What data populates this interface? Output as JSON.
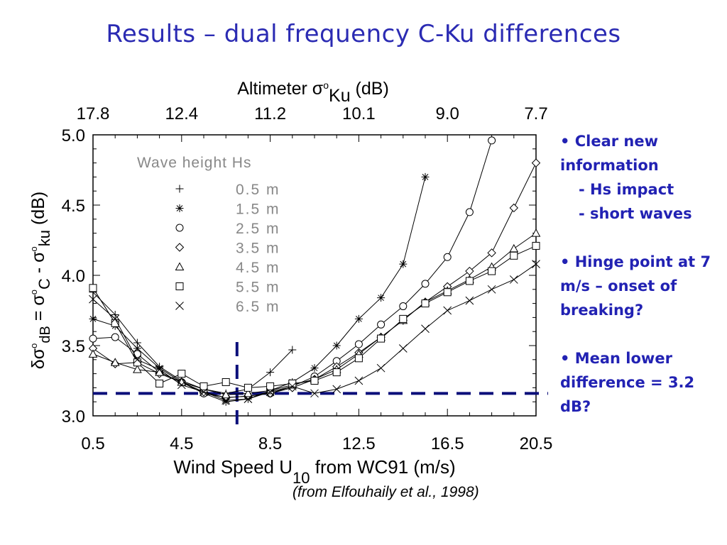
{
  "slide": {
    "title": "Results – dual frequency C-Ku differences",
    "citation": "(from Elfouhaily et al., 1998)",
    "bullets": [
      {
        "text": "• Clear new information",
        "sub": [
          "- Hs impact",
          "- short waves"
        ]
      },
      {
        "text": "• Hinge point at 7 m/s – onset of breaking?",
        "sub": []
      },
      {
        "text": "• Mean lower difference = 3.2 dB?",
        "sub": []
      }
    ],
    "accent_color": "#2b2bb3"
  },
  "chart_data": {
    "type": "line",
    "xlabel_main": "Wind Speed U",
    "xlabel_sub": "10",
    "xlabel_rest": " from WC91 (m/s)",
    "top_label_main": "Altimeter σ",
    "top_label_sup": "o",
    "top_label_sub": "Ku",
    "top_label_rest": " (dB)",
    "ylabel_parts": [
      "δσ",
      "o",
      "dB",
      " = σ",
      "o",
      "C",
      " - σ",
      "o",
      "ku",
      " (dB)"
    ],
    "xlim": [
      0.5,
      20.5
    ],
    "ylim": [
      3.0,
      5.0
    ],
    "x_ticks": [
      "0.5",
      "4.5",
      "8.5",
      "12.5",
      "16.5",
      "20.5"
    ],
    "y_ticks": [
      "3.0",
      "3.5",
      "4.0",
      "4.5",
      "5.0"
    ],
    "top_ticks": [
      "17.8",
      "12.4",
      "11.2",
      "10.1",
      "9.0",
      "7.7"
    ],
    "top_tick_x": [
      0.5,
      4.5,
      8.5,
      12.5,
      16.5,
      20.5
    ],
    "legend_title": "Wave height Hs",
    "legend_position": "top-left",
    "series": [
      {
        "name": "0.5 m",
        "marker": "plus",
        "x": [
          0.5,
          1.5,
          2.5,
          3.5,
          4.5,
          5.5,
          6.5,
          7.5,
          8.5,
          9.5
        ],
        "y": [
          3.88,
          3.72,
          3.52,
          3.35,
          3.25,
          3.19,
          3.16,
          3.19,
          3.31,
          3.47
        ]
      },
      {
        "name": "1.5 m",
        "marker": "star",
        "x": [
          0.5,
          1.5,
          2.5,
          3.5,
          4.5,
          5.5,
          6.5,
          7.5,
          8.5,
          9.5,
          10.5,
          11.5,
          12.5,
          13.5,
          14.5,
          15.5
        ],
        "y": [
          3.69,
          3.64,
          3.48,
          3.34,
          3.24,
          3.16,
          3.1,
          3.12,
          3.18,
          3.24,
          3.34,
          3.5,
          3.69,
          3.84,
          4.08,
          4.7
        ]
      },
      {
        "name": "2.5 m",
        "marker": "circle",
        "x": [
          0.5,
          1.5,
          2.5,
          3.5,
          4.5,
          5.5,
          6.5,
          7.5,
          8.5,
          9.5,
          10.5,
          11.5,
          12.5,
          13.5,
          14.5,
          15.5,
          16.5,
          17.5,
          18.5
        ],
        "y": [
          3.55,
          3.56,
          3.44,
          3.31,
          3.24,
          3.16,
          3.13,
          3.14,
          3.16,
          3.21,
          3.28,
          3.39,
          3.51,
          3.65,
          3.78,
          3.94,
          4.13,
          4.45,
          4.96
        ]
      },
      {
        "name": "3.5 m",
        "marker": "diamond",
        "x": [
          0.5,
          1.5,
          2.5,
          3.5,
          4.5,
          5.5,
          6.5,
          7.5,
          8.5,
          9.5,
          10.5,
          11.5,
          12.5,
          13.5,
          14.5,
          15.5,
          16.5,
          17.5,
          18.5,
          19.5,
          20.5
        ],
        "y": [
          3.48,
          3.37,
          3.38,
          3.3,
          3.24,
          3.17,
          3.13,
          3.14,
          3.16,
          3.2,
          3.26,
          3.35,
          3.45,
          3.56,
          3.68,
          3.81,
          3.92,
          4.03,
          4.16,
          4.48,
          4.8
        ]
      },
      {
        "name": "4.5 m",
        "marker": "triangle",
        "x": [
          0.5,
          1.5,
          2.5,
          3.5,
          4.5,
          5.5,
          6.5,
          7.5,
          8.5,
          9.5,
          10.5,
          11.5,
          12.5,
          13.5,
          14.5,
          15.5,
          16.5,
          17.5,
          18.5,
          19.5,
          20.5
        ],
        "y": [
          3.44,
          3.38,
          3.33,
          3.31,
          3.24,
          3.19,
          3.15,
          3.16,
          3.18,
          3.22,
          3.26,
          3.33,
          3.44,
          3.56,
          3.68,
          3.81,
          3.89,
          3.97,
          4.06,
          4.19,
          4.3
        ]
      },
      {
        "name": "5.5 m",
        "marker": "square",
        "x": [
          0.5,
          1.5,
          2.5,
          3.5,
          4.5,
          5.5,
          6.5,
          7.5,
          8.5,
          9.5,
          10.5,
          11.5,
          12.5,
          13.5,
          14.5,
          15.5,
          16.5,
          17.5,
          18.5,
          19.5,
          20.5
        ],
        "y": [
          3.91,
          3.66,
          3.38,
          3.23,
          3.3,
          3.21,
          3.24,
          3.2,
          3.21,
          3.23,
          3.25,
          3.31,
          3.41,
          3.55,
          3.69,
          3.8,
          3.88,
          3.96,
          4.03,
          4.14,
          4.21
        ]
      },
      {
        "name": "6.5 m",
        "marker": "x",
        "x": [
          0.5,
          1.5,
          2.5,
          3.5,
          4.5,
          5.5,
          6.5,
          7.5,
          8.5,
          9.5,
          10.5,
          11.5,
          12.5,
          13.5,
          14.5,
          15.5,
          16.5,
          17.5,
          18.5,
          19.5,
          20.5
        ],
        "y": [
          3.83,
          3.69,
          3.4,
          3.33,
          3.22,
          3.17,
          3.11,
          3.12,
          3.17,
          3.21,
          3.16,
          3.19,
          3.25,
          3.34,
          3.48,
          3.62,
          3.75,
          3.82,
          3.9,
          3.97,
          4.08
        ]
      }
    ],
    "hinge_x": 7.0,
    "mean_level": 3.16,
    "dashed_line_color": "#0b0f7a",
    "grid": false
  }
}
